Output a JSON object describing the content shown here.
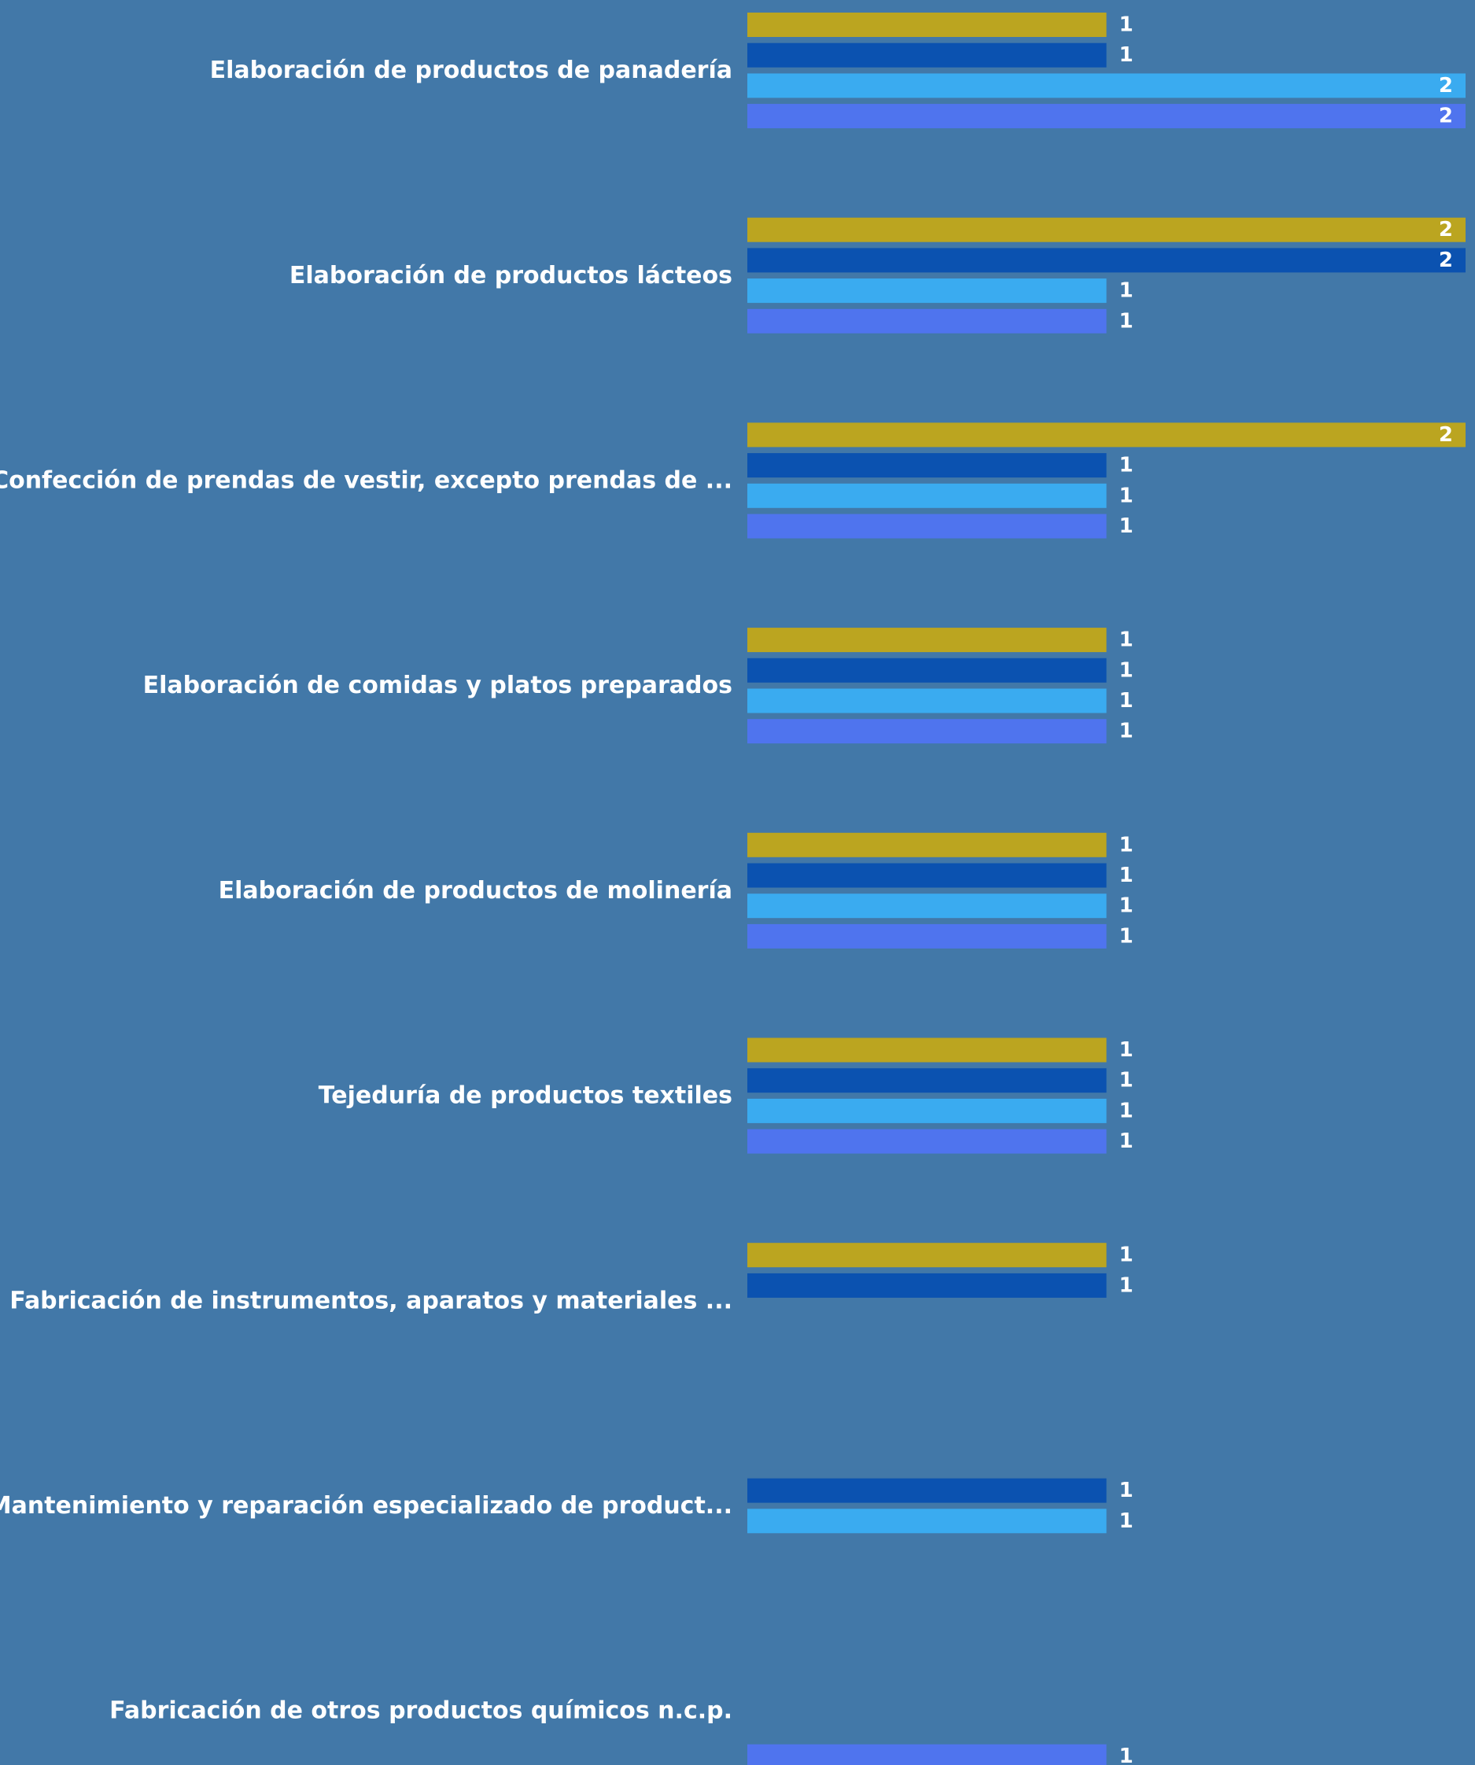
{
  "colors": {
    "background": "#4278A8",
    "text": "#FFFFFF"
  },
  "chart_data": {
    "type": "bar",
    "orientation": "horizontal",
    "xlim": [
      0,
      2
    ],
    "grid": false,
    "categories": [
      "Elaboración de productos de panadería",
      "Elaboración de productos lácteos",
      "Confección de prendas de vestir, excepto prendas de ...",
      "Elaboración de comidas y platos preparados",
      "Elaboración de productos de molinería",
      "Tejeduría de productos textiles",
      "Fabricación de instrumentos, aparatos y materiales ...",
      "Mantenimiento y reparación especializado de product...",
      "Fabricación de otros productos químicos n.c.p."
    ],
    "series": [
      {
        "color": "#BBA520",
        "values": [
          1,
          2,
          2,
          1,
          1,
          1,
          1,
          null,
          null
        ]
      },
      {
        "color": "#0B52B0",
        "values": [
          1,
          2,
          1,
          1,
          1,
          1,
          1,
          1,
          null
        ]
      },
      {
        "color": "#3AABF0",
        "values": [
          2,
          1,
          1,
          1,
          1,
          1,
          null,
          1,
          null
        ]
      },
      {
        "color": "#4F74EE",
        "values": [
          2,
          1,
          1,
          1,
          1,
          1,
          null,
          null,
          1
        ]
      }
    ]
  }
}
